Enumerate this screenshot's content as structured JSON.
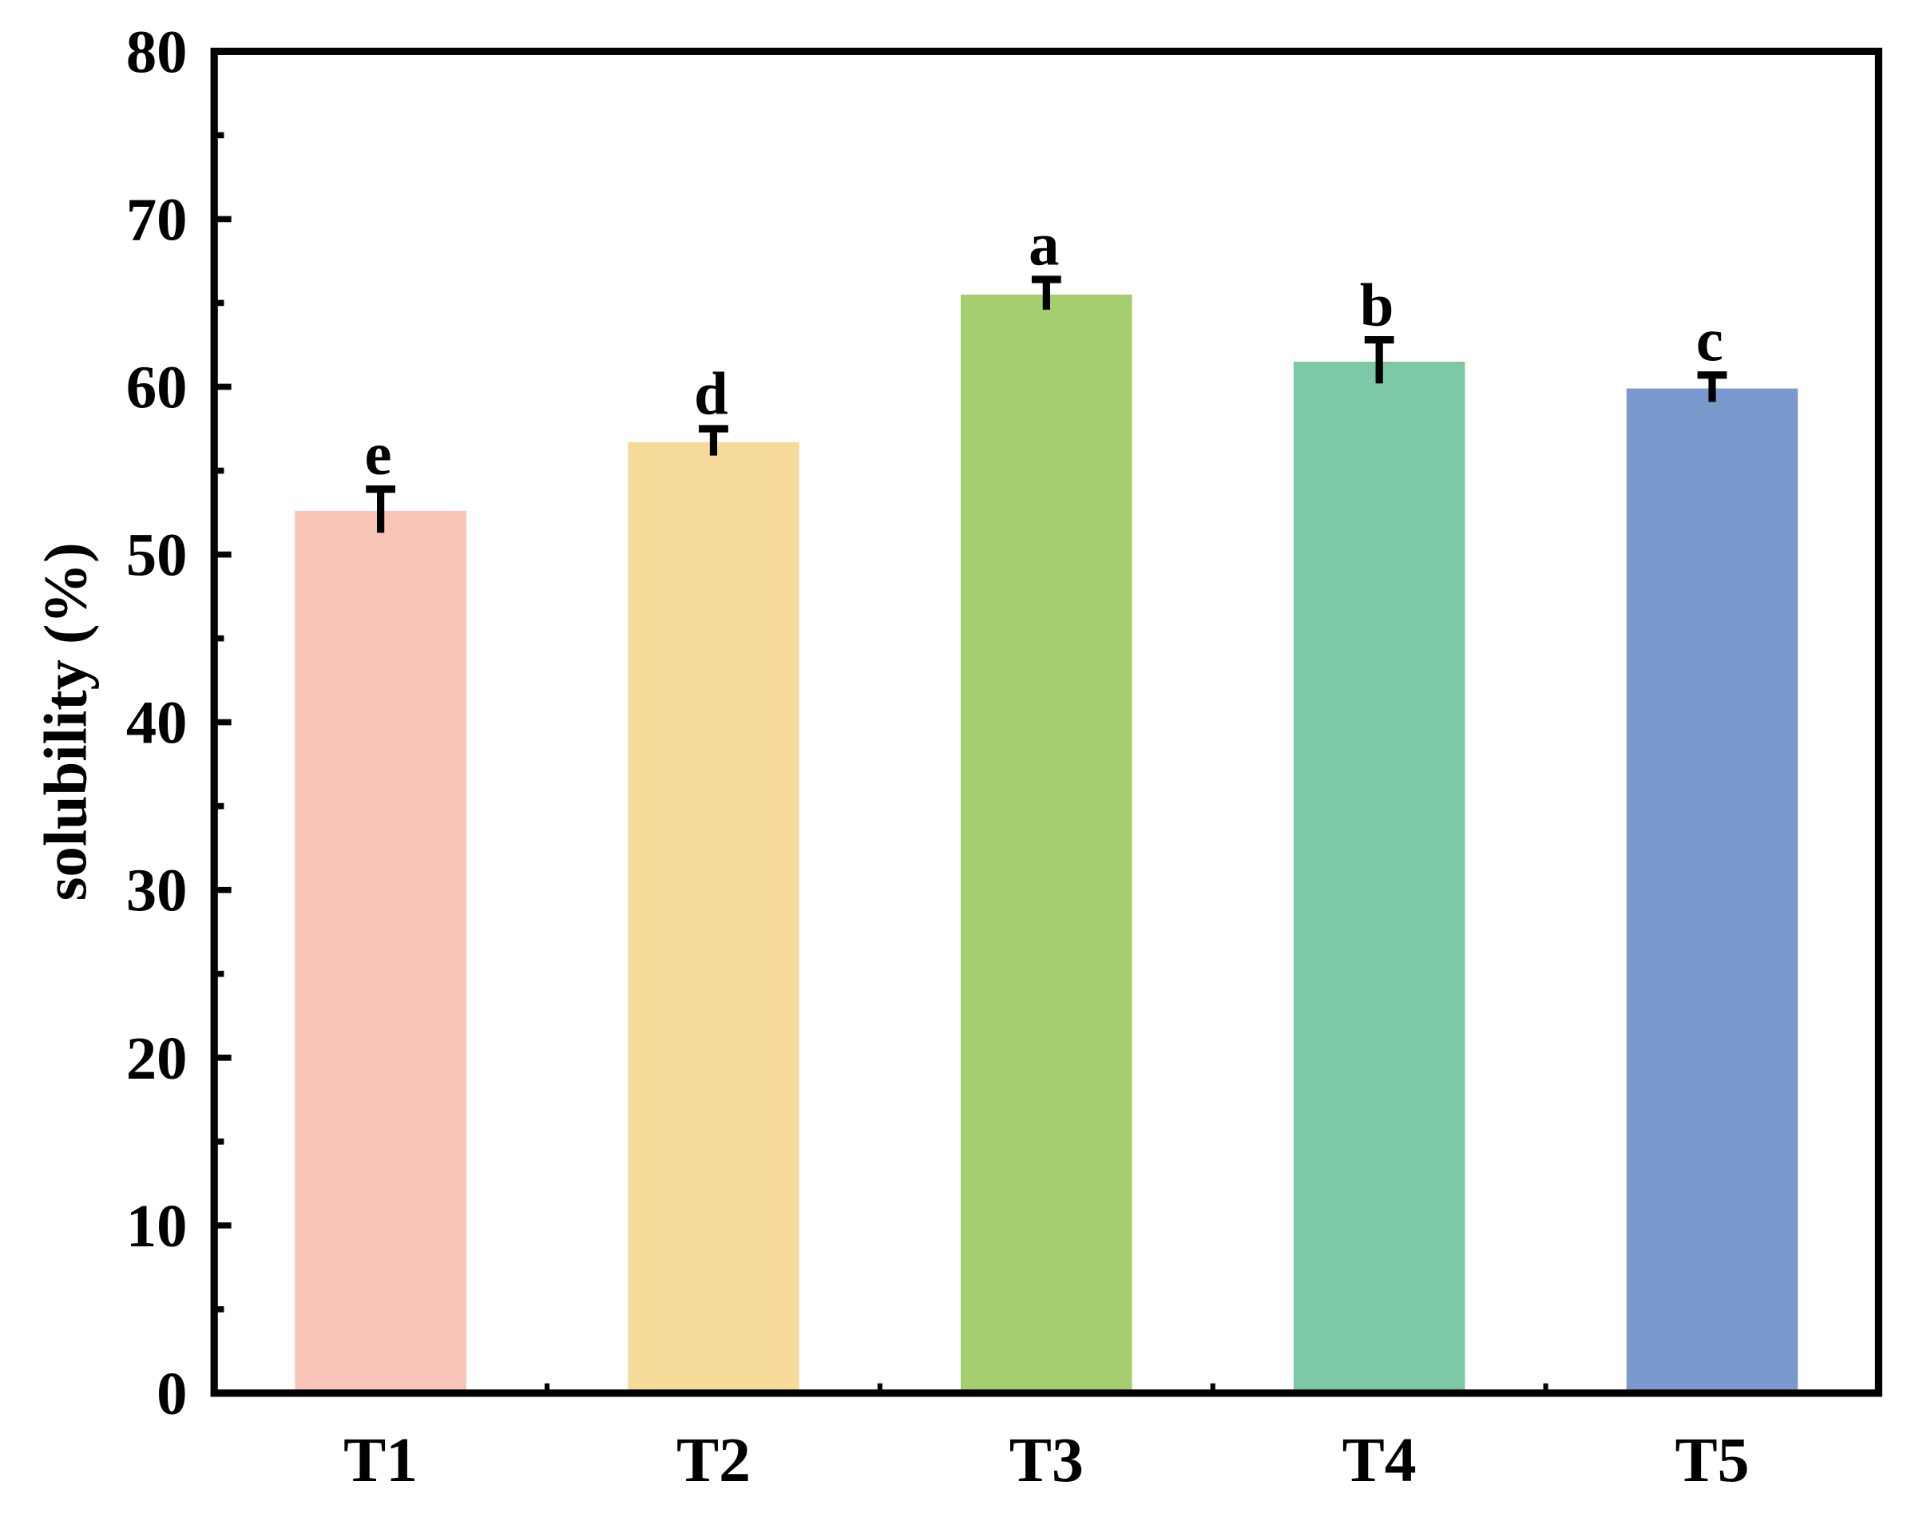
{
  "chart_data": {
    "type": "bar",
    "y_label": "solubility (%)",
    "categories": [
      "T1",
      "T2",
      "T3",
      "T4",
      "T5"
    ],
    "values": [
      52.6,
      56.7,
      65.5,
      61.5,
      59.9
    ],
    "errors": [
      1.3,
      0.8,
      0.9,
      1.3,
      0.8
    ],
    "annotations": [
      "e",
      "d",
      "a",
      "b",
      "c"
    ],
    "colors": [
      "#f9c4b8",
      "#f5da9a",
      "#a5cf6e",
      "#7dc8a5",
      "#7a99cc"
    ],
    "ylim": [
      0,
      80
    ],
    "yticks": [
      0,
      10,
      20,
      30,
      40,
      50,
      60,
      70,
      80
    ]
  }
}
